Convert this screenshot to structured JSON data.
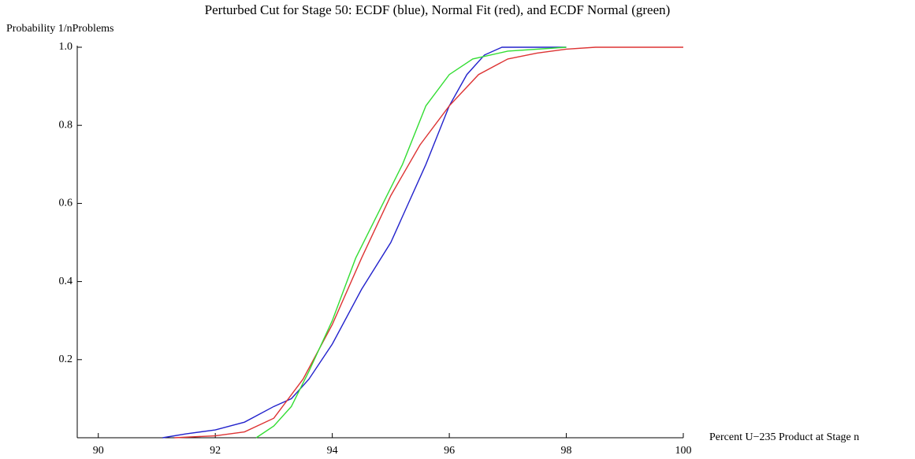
{
  "chart_data": {
    "type": "line",
    "title": "Perturbed Cut for Stage 50:  ECDF (blue), Normal Fit (red), and ECDF Normal (green)",
    "ylabel": "Probability 1/nProblems",
    "xlabel": "Percent U−235 Product at Stage n",
    "xlim": [
      89.64,
      100
    ],
    "ylim": [
      0,
      1
    ],
    "xticks": [
      90,
      92,
      94,
      96,
      98,
      100
    ],
    "yticks": [
      0.2,
      0.4,
      0.6,
      0.8,
      {
        "value": 1,
        "label": "1.0"
      }
    ],
    "series": [
      {
        "name": "ECDF",
        "color": "#2222cc",
        "x": [
          91.1,
          91.5,
          92,
          92.5,
          93,
          93.3,
          93.6,
          94,
          94.5,
          95,
          95.3,
          95.6,
          96,
          96.3,
          96.6,
          96.9,
          98
        ],
        "values": [
          0,
          0.01,
          0.02,
          0.04,
          0.08,
          0.1,
          0.15,
          0.24,
          0.38,
          0.5,
          0.6,
          0.7,
          0.85,
          0.93,
          0.98,
          1,
          1
        ]
      },
      {
        "name": "Normal Fit",
        "color": "#dd3333",
        "x": [
          91.3,
          92,
          92.5,
          93,
          93.5,
          94,
          94.5,
          95,
          95.5,
          96,
          96.5,
          97,
          97.5,
          98,
          98.5,
          100
        ],
        "values": [
          0,
          0.005,
          0.015,
          0.05,
          0.15,
          0.29,
          0.46,
          0.62,
          0.75,
          0.85,
          0.93,
          0.97,
          0.985,
          0.995,
          1,
          1
        ]
      },
      {
        "name": "ECDF Normal",
        "color": "#33dd33",
        "x": [
          92.7,
          93,
          93.3,
          93.6,
          94,
          94.4,
          94.8,
          95.2,
          95.6,
          96,
          96.4,
          97,
          98
        ],
        "values": [
          0,
          0.03,
          0.08,
          0.17,
          0.3,
          0.46,
          0.58,
          0.7,
          0.85,
          0.93,
          0.97,
          0.99,
          1
        ]
      }
    ]
  }
}
